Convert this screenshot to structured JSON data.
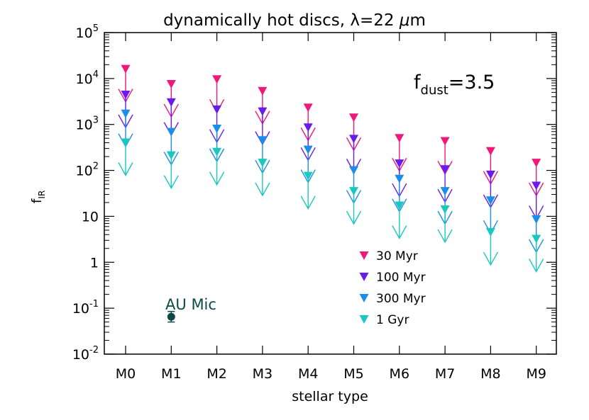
{
  "chart_data": {
    "type": "scatter",
    "title_prefix": "dynamically hot discs, ",
    "title_lambda": "λ",
    "title_suffix": "=22 ",
    "title_mu": "μ",
    "title_unit": "m",
    "xlabel": "stellar type",
    "ylabel_main": "f",
    "ylabel_sub": "IR",
    "annotation_main": "f",
    "annotation_sub": "dust",
    "annotation_value": "=3.5",
    "y_scale": "log",
    "ylim": [
      0.01,
      100000
    ],
    "yticks": [
      {
        "value": 0.01,
        "base": "10",
        "exp": "-2"
      },
      {
        "value": 0.1,
        "base": "10",
        "exp": "-1"
      },
      {
        "value": 1,
        "label": "1"
      },
      {
        "value": 10,
        "label": "10"
      },
      {
        "value": 100,
        "base": "10",
        "exp": "2"
      },
      {
        "value": 1000,
        "base": "10",
        "exp": "3"
      },
      {
        "value": 10000,
        "base": "10",
        "exp": "4"
      },
      {
        "value": 100000,
        "base": "10",
        "exp": "5"
      }
    ],
    "categories": [
      "M0",
      "M1",
      "M2",
      "M3",
      "M4",
      "M5",
      "M6",
      "M7",
      "M8",
      "M9"
    ],
    "upper_limits": true,
    "series": [
      {
        "name": "30 Myr",
        "color": "#f0187a",
        "values": [
          16000,
          7500,
          9500,
          5300,
          2300,
          1400,
          500,
          430,
          260,
          145
        ]
      },
      {
        "name": "100 Myr",
        "color": "#6a1aee",
        "values": [
          4400,
          3000,
          2100,
          1900,
          850,
          480,
          140,
          105,
          80,
          46
        ]
      },
      {
        "name": "300 Myr",
        "color": "#1a8ee8",
        "values": [
          1700,
          680,
          800,
          450,
          280,
          100,
          65,
          35,
          22,
          8.5
        ]
      },
      {
        "name": "1 Gyr",
        "color": "#1ac8c0",
        "values": [
          400,
          210,
          250,
          145,
          75,
          35,
          17,
          14,
          4.5,
          3.2
        ]
      }
    ],
    "legend_position": "bottom-right",
    "au_mic": {
      "label": "AU Mic",
      "category": "M1",
      "value": 0.065,
      "err_low": 0.05,
      "err_high": 0.085,
      "color": "#0c4a48"
    }
  }
}
